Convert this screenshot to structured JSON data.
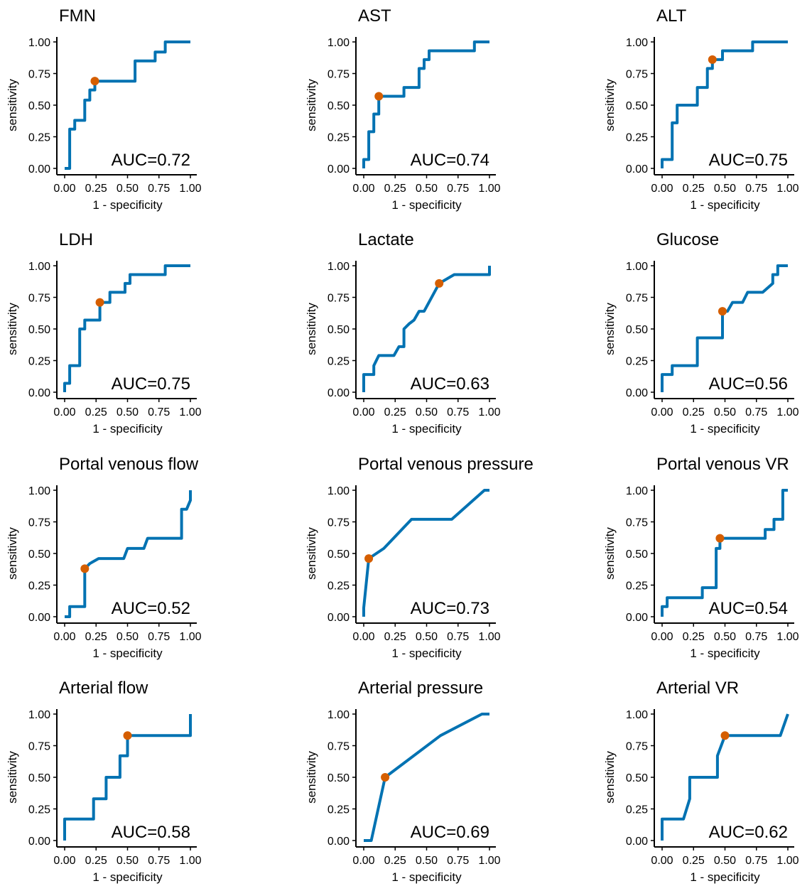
{
  "layout": {
    "rows": 4,
    "cols": 3
  },
  "style": {
    "curve_color": "#0072B2",
    "point_color": "#D55E00",
    "axis_color": "#000000"
  },
  "chart_data": [
    {
      "type": "line",
      "title": "FMN",
      "xlabel": "1 - specificity",
      "ylabel": "sensitivity",
      "xlim": [
        0,
        1
      ],
      "ylim": [
        0,
        1
      ],
      "xticks": [
        "0.00",
        "0.25",
        "0.50",
        "0.75",
        "1.00"
      ],
      "yticks": [
        "0.00",
        "0.25",
        "0.50",
        "0.75",
        "1.00"
      ],
      "auc_label": "AUC=0.72",
      "points": [
        [
          0,
          0
        ],
        [
          0.04,
          0
        ],
        [
          0.04,
          0.31
        ],
        [
          0.08,
          0.31
        ],
        [
          0.08,
          0.38
        ],
        [
          0.16,
          0.38
        ],
        [
          0.16,
          0.54
        ],
        [
          0.2,
          0.54
        ],
        [
          0.2,
          0.62
        ],
        [
          0.24,
          0.62
        ],
        [
          0.24,
          0.69
        ],
        [
          0.56,
          0.69
        ],
        [
          0.56,
          0.85
        ],
        [
          0.72,
          0.85
        ],
        [
          0.72,
          0.92
        ],
        [
          0.8,
          0.92
        ],
        [
          0.8,
          1
        ],
        [
          1,
          1
        ]
      ],
      "optimal_point": [
        0.24,
        0.69
      ]
    },
    {
      "type": "line",
      "title": "AST",
      "xlabel": "1 - specificity",
      "ylabel": "sensitivity",
      "xlim": [
        0,
        1
      ],
      "ylim": [
        0,
        1
      ],
      "xticks": [
        "0.00",
        "0.25",
        "0.50",
        "0.75",
        "1.00"
      ],
      "yticks": [
        "0.00",
        "0.25",
        "0.50",
        "0.75",
        "1.00"
      ],
      "auc_label": "AUC=0.74",
      "points": [
        [
          0,
          0
        ],
        [
          0,
          0.07
        ],
        [
          0.04,
          0.07
        ],
        [
          0.04,
          0.29
        ],
        [
          0.08,
          0.29
        ],
        [
          0.08,
          0.43
        ],
        [
          0.12,
          0.43
        ],
        [
          0.12,
          0.57
        ],
        [
          0.32,
          0.57
        ],
        [
          0.32,
          0.64
        ],
        [
          0.44,
          0.64
        ],
        [
          0.44,
          0.79
        ],
        [
          0.48,
          0.79
        ],
        [
          0.48,
          0.86
        ],
        [
          0.52,
          0.86
        ],
        [
          0.52,
          0.93
        ],
        [
          0.88,
          0.93
        ],
        [
          0.88,
          1
        ],
        [
          1,
          1
        ]
      ],
      "optimal_point": [
        0.12,
        0.57
      ]
    },
    {
      "type": "line",
      "title": "ALT",
      "xlabel": "1 - specificity",
      "ylabel": "sensitivity",
      "xlim": [
        0,
        1
      ],
      "ylim": [
        0,
        1
      ],
      "xticks": [
        "0.00",
        "0.25",
        "0.50",
        "0.75",
        "1.00"
      ],
      "yticks": [
        "0.00",
        "0.25",
        "0.50",
        "0.75",
        "1.00"
      ],
      "auc_label": "AUC=0.75",
      "points": [
        [
          0,
          0
        ],
        [
          0,
          0.07
        ],
        [
          0.08,
          0.07
        ],
        [
          0.08,
          0.36
        ],
        [
          0.12,
          0.36
        ],
        [
          0.12,
          0.5
        ],
        [
          0.28,
          0.5
        ],
        [
          0.28,
          0.64
        ],
        [
          0.36,
          0.64
        ],
        [
          0.36,
          0.79
        ],
        [
          0.4,
          0.79
        ],
        [
          0.4,
          0.86
        ],
        [
          0.48,
          0.86
        ],
        [
          0.48,
          0.93
        ],
        [
          0.72,
          0.93
        ],
        [
          0.72,
          1
        ],
        [
          1,
          1
        ]
      ],
      "optimal_point": [
        0.4,
        0.86
      ]
    },
    {
      "type": "line",
      "title": "LDH",
      "xlabel": "1 - specificity",
      "ylabel": "sensitivity",
      "xlim": [
        0,
        1
      ],
      "ylim": [
        0,
        1
      ],
      "xticks": [
        "0.00",
        "0.25",
        "0.50",
        "0.75",
        "1.00"
      ],
      "yticks": [
        "0.00",
        "0.25",
        "0.50",
        "0.75",
        "1.00"
      ],
      "auc_label": "AUC=0.75",
      "points": [
        [
          0,
          0
        ],
        [
          0,
          0.07
        ],
        [
          0.04,
          0.07
        ],
        [
          0.04,
          0.21
        ],
        [
          0.12,
          0.21
        ],
        [
          0.12,
          0.5
        ],
        [
          0.16,
          0.5
        ],
        [
          0.16,
          0.57
        ],
        [
          0.28,
          0.57
        ],
        [
          0.28,
          0.71
        ],
        [
          0.36,
          0.71
        ],
        [
          0.36,
          0.79
        ],
        [
          0.48,
          0.79
        ],
        [
          0.48,
          0.86
        ],
        [
          0.52,
          0.86
        ],
        [
          0.52,
          0.93
        ],
        [
          0.8,
          0.93
        ],
        [
          0.8,
          1
        ],
        [
          1,
          1
        ]
      ],
      "optimal_point": [
        0.28,
        0.71
      ]
    },
    {
      "type": "line",
      "title": "Lactate",
      "xlabel": "1 - specificity",
      "ylabel": "sensitivity",
      "xlim": [
        0,
        1
      ],
      "ylim": [
        0,
        1
      ],
      "xticks": [
        "0.00",
        "0.25",
        "0.50",
        "0.75",
        "1.00"
      ],
      "yticks": [
        "0.00",
        "0.25",
        "0.50",
        "0.75",
        "1.00"
      ],
      "auc_label": "AUC=0.63",
      "points": [
        [
          0,
          0
        ],
        [
          0,
          0.14
        ],
        [
          0.08,
          0.14
        ],
        [
          0.08,
          0.21
        ],
        [
          0.12,
          0.29
        ],
        [
          0.24,
          0.29
        ],
        [
          0.28,
          0.36
        ],
        [
          0.32,
          0.36
        ],
        [
          0.32,
          0.5
        ],
        [
          0.36,
          0.54
        ],
        [
          0.4,
          0.57
        ],
        [
          0.44,
          0.64
        ],
        [
          0.48,
          0.64
        ],
        [
          0.6,
          0.86
        ],
        [
          0.72,
          0.93
        ],
        [
          1,
          0.93
        ],
        [
          1,
          1
        ]
      ],
      "optimal_point": [
        0.6,
        0.86
      ]
    },
    {
      "type": "line",
      "title": "Glucose",
      "xlabel": "1 - specificity",
      "ylabel": "sensitivity",
      "xlim": [
        0,
        1
      ],
      "ylim": [
        0,
        1
      ],
      "xticks": [
        "0.00",
        "0.25",
        "0.50",
        "0.75",
        "1.00"
      ],
      "yticks": [
        "0.00",
        "0.25",
        "0.50",
        "0.75",
        "1.00"
      ],
      "auc_label": "AUC=0.56",
      "points": [
        [
          0,
          0
        ],
        [
          0,
          0.14
        ],
        [
          0.08,
          0.14
        ],
        [
          0.08,
          0.21
        ],
        [
          0.28,
          0.21
        ],
        [
          0.28,
          0.43
        ],
        [
          0.48,
          0.43
        ],
        [
          0.48,
          0.64
        ],
        [
          0.52,
          0.64
        ],
        [
          0.56,
          0.71
        ],
        [
          0.64,
          0.71
        ],
        [
          0.68,
          0.79
        ],
        [
          0.8,
          0.79
        ],
        [
          0.88,
          0.86
        ],
        [
          0.88,
          0.93
        ],
        [
          0.92,
          0.93
        ],
        [
          0.92,
          1
        ],
        [
          1,
          1
        ]
      ],
      "optimal_point": [
        0.48,
        0.64
      ]
    },
    {
      "type": "line",
      "title": "Portal venous flow",
      "xlabel": "1 - specificity",
      "ylabel": "sensitivity",
      "xlim": [
        0,
        1
      ],
      "ylim": [
        0,
        1
      ],
      "xticks": [
        "0.00",
        "0.25",
        "0.50",
        "0.75",
        "1.00"
      ],
      "yticks": [
        "0.00",
        "0.25",
        "0.50",
        "0.75",
        "1.00"
      ],
      "auc_label": "AUC=0.52",
      "points": [
        [
          0,
          0
        ],
        [
          0.04,
          0
        ],
        [
          0.04,
          0.08
        ],
        [
          0.16,
          0.08
        ],
        [
          0.16,
          0.38
        ],
        [
          0.2,
          0.42
        ],
        [
          0.27,
          0.46
        ],
        [
          0.47,
          0.46
        ],
        [
          0.5,
          0.54
        ],
        [
          0.63,
          0.54
        ],
        [
          0.66,
          0.62
        ],
        [
          0.93,
          0.62
        ],
        [
          0.93,
          0.85
        ],
        [
          0.97,
          0.85
        ],
        [
          1,
          0.92
        ],
        [
          1,
          1
        ]
      ],
      "optimal_point": [
        0.16,
        0.38
      ]
    },
    {
      "type": "line",
      "title": "Portal venous pressure",
      "xlabel": "1 - specificity",
      "ylabel": "sensitivity",
      "xlim": [
        0,
        1
      ],
      "ylim": [
        0,
        1
      ],
      "xticks": [
        "0.00",
        "0.25",
        "0.50",
        "0.75",
        "1.00"
      ],
      "yticks": [
        "0.00",
        "0.25",
        "0.50",
        "0.75",
        "1.00"
      ],
      "auc_label": "AUC=0.73",
      "points": [
        [
          0,
          0
        ],
        [
          0,
          0.07
        ],
        [
          0.04,
          0.46
        ],
        [
          0.16,
          0.54
        ],
        [
          0.38,
          0.77
        ],
        [
          0.7,
          0.77
        ],
        [
          0.96,
          1
        ],
        [
          1,
          1
        ]
      ],
      "optimal_point": [
        0.04,
        0.46
      ]
    },
    {
      "type": "line",
      "title": "Portal venous VR",
      "xlabel": "1 - specificity",
      "ylabel": "sensitivity",
      "xlim": [
        0,
        1
      ],
      "ylim": [
        0,
        1
      ],
      "xticks": [
        "0.00",
        "0.25",
        "0.50",
        "0.75",
        "1.00"
      ],
      "yticks": [
        "0.00",
        "0.25",
        "0.50",
        "0.75",
        "1.00"
      ],
      "auc_label": "AUC=0.54",
      "points": [
        [
          0,
          0
        ],
        [
          0,
          0.08
        ],
        [
          0.04,
          0.08
        ],
        [
          0.04,
          0.15
        ],
        [
          0.32,
          0.15
        ],
        [
          0.32,
          0.23
        ],
        [
          0.43,
          0.23
        ],
        [
          0.43,
          0.54
        ],
        [
          0.46,
          0.54
        ],
        [
          0.46,
          0.62
        ],
        [
          0.82,
          0.62
        ],
        [
          0.82,
          0.69
        ],
        [
          0.89,
          0.69
        ],
        [
          0.89,
          0.77
        ],
        [
          0.96,
          0.77
        ],
        [
          0.96,
          1
        ],
        [
          1,
          1
        ]
      ],
      "optimal_point": [
        0.46,
        0.62
      ]
    },
    {
      "type": "line",
      "title": "Arterial flow",
      "xlabel": "1 - specificity",
      "ylabel": "sensitivity",
      "xlim": [
        0,
        1
      ],
      "ylim": [
        0,
        1
      ],
      "xticks": [
        "0.00",
        "0.25",
        "0.50",
        "0.75",
        "1.00"
      ],
      "yticks": [
        "0.00",
        "0.25",
        "0.50",
        "0.75",
        "1.00"
      ],
      "auc_label": "AUC=0.58",
      "points": [
        [
          0,
          0
        ],
        [
          0,
          0.17
        ],
        [
          0.23,
          0.17
        ],
        [
          0.23,
          0.33
        ],
        [
          0.33,
          0.33
        ],
        [
          0.33,
          0.5
        ],
        [
          0.44,
          0.5
        ],
        [
          0.44,
          0.67
        ],
        [
          0.5,
          0.67
        ],
        [
          0.5,
          0.83
        ],
        [
          1,
          0.83
        ],
        [
          1,
          1
        ]
      ],
      "optimal_point": [
        0.5,
        0.83
      ]
    },
    {
      "type": "line",
      "title": "Arterial pressure",
      "xlabel": "1 - specificity",
      "ylabel": "sensitivity",
      "xlim": [
        0,
        1
      ],
      "ylim": [
        0,
        1
      ],
      "xticks": [
        "0.00",
        "0.25",
        "0.50",
        "0.75",
        "1.00"
      ],
      "yticks": [
        "0.00",
        "0.25",
        "0.50",
        "0.75",
        "1.00"
      ],
      "auc_label": "AUC=0.69",
      "points": [
        [
          0,
          0
        ],
        [
          0.06,
          0
        ],
        [
          0.17,
          0.5
        ],
        [
          0.61,
          0.83
        ],
        [
          0.94,
          1
        ],
        [
          1,
          1
        ]
      ],
      "optimal_point": [
        0.17,
        0.5
      ]
    },
    {
      "type": "line",
      "title": "Arterial VR",
      "xlabel": "1 - specificity",
      "ylabel": "sensitivity",
      "xlim": [
        0,
        1
      ],
      "ylim": [
        0,
        1
      ],
      "xticks": [
        "0.00",
        "0.25",
        "0.50",
        "0.75",
        "1.00"
      ],
      "yticks": [
        "0.00",
        "0.25",
        "0.50",
        "0.75",
        "1.00"
      ],
      "auc_label": "AUC=0.62",
      "points": [
        [
          0,
          0
        ],
        [
          0,
          0.17
        ],
        [
          0.17,
          0.17
        ],
        [
          0.22,
          0.33
        ],
        [
          0.22,
          0.5
        ],
        [
          0.44,
          0.5
        ],
        [
          0.44,
          0.67
        ],
        [
          0.5,
          0.83
        ],
        [
          0.94,
          0.83
        ],
        [
          1,
          1
        ]
      ],
      "optimal_point": [
        0.5,
        0.83
      ]
    }
  ]
}
